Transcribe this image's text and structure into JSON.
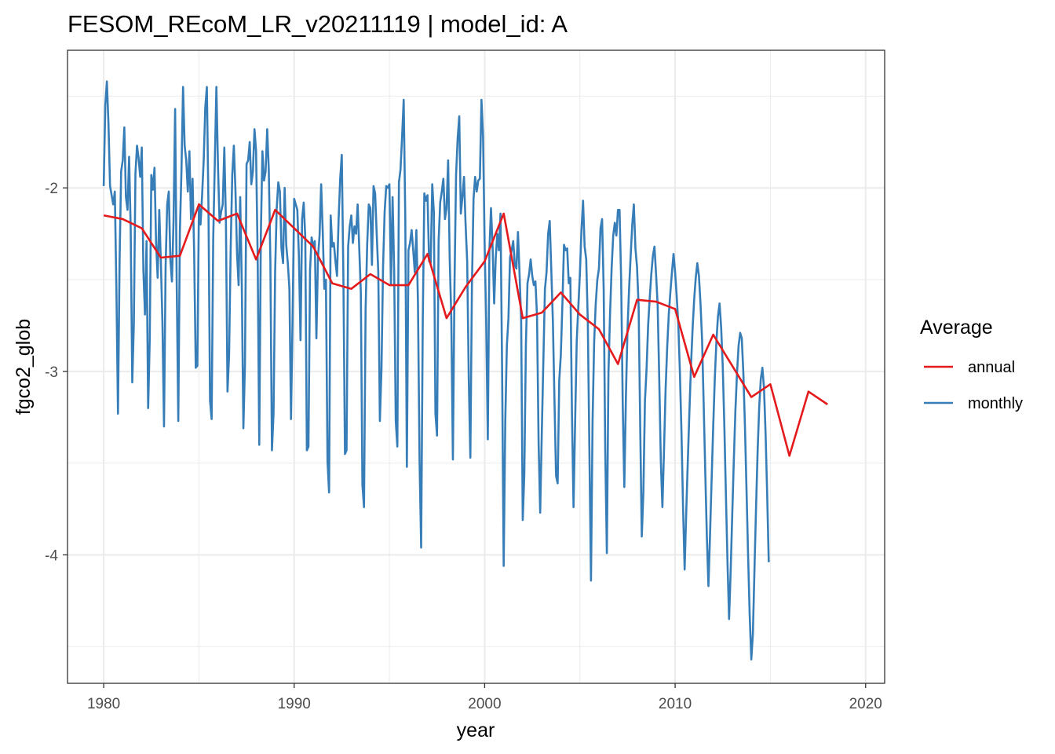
{
  "chart_data": {
    "type": "line",
    "title": "FESOM_REcoM_LR_v20211119 | model_id: A",
    "xlabel": "year",
    "ylabel": "fgco2_glob",
    "xlim": [
      1978.1,
      2021.0
    ],
    "ylim": [
      -4.7,
      -1.25
    ],
    "x_ticks": [
      1980,
      1990,
      2000,
      2010,
      2020
    ],
    "x_tick_labels": [
      "1980",
      "1990",
      "2000",
      "2010",
      "2020"
    ],
    "y_ticks": [
      -4,
      -3,
      -2
    ],
    "y_tick_labels": [
      "-4",
      "-3",
      "-2"
    ],
    "y_minor": [
      -4.5,
      -3.5,
      -2.5,
      -1.5
    ],
    "x_minor": [
      1985,
      1995,
      2005,
      2015
    ],
    "legend": {
      "title": "Average",
      "position": "right",
      "entries": [
        "annual",
        "monthly"
      ]
    },
    "series": [
      {
        "name": "annual",
        "color": "#e41a1c",
        "x": [
          1980,
          1981,
          1982,
          1983,
          1984,
          1985,
          1986,
          1987,
          1988,
          1989,
          1990,
          1991,
          1992,
          1993,
          1994,
          1995,
          1996,
          1997,
          1998,
          1999,
          2000,
          2001,
          2002,
          2003,
          2004,
          2005,
          2006,
          2007,
          2008,
          2009,
          2010,
          2011,
          2012,
          2013,
          2014,
          2015,
          2016,
          2017,
          2018
        ],
        "y": [
          -2.15,
          -2.17,
          -2.22,
          -2.38,
          -2.37,
          -2.09,
          -2.18,
          -2.14,
          -2.39,
          -2.12,
          -2.22,
          -2.32,
          -2.52,
          -2.55,
          -2.47,
          -2.53,
          -2.53,
          -2.36,
          -2.71,
          -2.54,
          -2.4,
          -2.14,
          -2.71,
          -2.68,
          -2.57,
          -2.69,
          -2.77,
          -2.96,
          -2.61,
          -2.62,
          -2.66,
          -3.03,
          -2.8,
          -2.97,
          -3.14,
          -3.07,
          -3.46,
          -3.11,
          -3.18
        ]
      },
      {
        "name": "monthly",
        "color": "#377eb8",
        "x_start": 1980.0,
        "x_step": 0.08333,
        "y": [
          -1.99,
          -1.55,
          -1.42,
          -1.65,
          -1.99,
          -2.04,
          -2.09,
          -2.02,
          -2.55,
          -3.23,
          -2.4,
          -1.91,
          -1.85,
          -1.67,
          -2.05,
          -2.12,
          -1.83,
          -2.22,
          -3.06,
          -2.74,
          -1.92,
          -1.77,
          -1.84,
          -1.94,
          -1.78,
          -2.45,
          -2.69,
          -2.29,
          -3.2,
          -2.83,
          -1.93,
          -2.01,
          -1.89,
          -2.3,
          -2.49,
          -2.12,
          -2.4,
          -2.73,
          -3.3,
          -2.43,
          -2.09,
          -2.02,
          -2.39,
          -2.51,
          -2.18,
          -1.57,
          -2.52,
          -3.27,
          -2.24,
          -1.9,
          -1.45,
          -1.77,
          -1.85,
          -2.02,
          -1.8,
          -2.17,
          -1.95,
          -2.36,
          -2.98,
          -2.97,
          -2.09,
          -2.2,
          -2.04,
          -1.85,
          -1.56,
          -1.45,
          -2.1,
          -3.16,
          -3.26,
          -2.28,
          -1.86,
          -1.45,
          -1.88,
          -2.19,
          -2.13,
          -2.09,
          -1.78,
          -2.18,
          -3.11,
          -2.91,
          -2.33,
          -1.93,
          -1.77,
          -2.01,
          -2.36,
          -2.53,
          -2.05,
          -2.52,
          -3.31,
          -2.96,
          -1.87,
          -1.85,
          -1.75,
          -1.98,
          -1.91,
          -1.68,
          -1.8,
          -2.38,
          -3.4,
          -2.26,
          -1.8,
          -1.96,
          -1.91,
          -1.68,
          -1.9,
          -2.39,
          -3.43,
          -3.23,
          -2.46,
          -2.11,
          -1.97,
          -2.02,
          -2.33,
          -2.41,
          -2.0,
          -2.31,
          -2.41,
          -2.55,
          -3.26,
          -2.72,
          -2.06,
          -2.09,
          -2.12,
          -2.38,
          -2.83,
          -2.17,
          -2.08,
          -2.27,
          -3.43,
          -3.41,
          -2.45,
          -2.27,
          -2.32,
          -2.29,
          -2.82,
          -2.38,
          -2.26,
          -1.98,
          -2.24,
          -2.55,
          -2.5,
          -3.49,
          -3.66,
          -2.15,
          -2.32,
          -2.3,
          -2.4,
          -2.48,
          -2.17,
          -1.95,
          -1.82,
          -2.48,
          -3.45,
          -3.43,
          -2.32,
          -2.21,
          -2.15,
          -2.3,
          -2.21,
          -2.25,
          -2.09,
          -2.33,
          -2.57,
          -3.62,
          -3.74,
          -2.66,
          -2.31,
          -2.09,
          -2.11,
          -2.42,
          -1.99,
          -2.03,
          -2.25,
          -2.46,
          -3.27,
          -2.99,
          -2.43,
          -2.13,
          -1.99,
          -2.0,
          -1.98,
          -2.53,
          -2.05,
          -2.45,
          -3.27,
          -3.41,
          -1.97,
          -1.9,
          -1.72,
          -1.52,
          -2.16,
          -3.52,
          -2.34,
          -2.3,
          -2.23,
          -2.34,
          -2.46,
          -2.23,
          -2.63,
          -3.49,
          -3.96,
          -2.74,
          -2.03,
          -2.07,
          -2.04,
          -2.4,
          -2.41,
          -1.98,
          -2.13,
          -3.23,
          -3.35,
          -2.29,
          -2.08,
          -2.02,
          -1.95,
          -2.17,
          -2.11,
          -1.85,
          -2.39,
          -2.71,
          -3.48,
          -2.53,
          -1.93,
          -1.73,
          -1.61,
          -2.14,
          -2.05,
          -1.94,
          -2.2,
          -2.4,
          -3.04,
          -3.47,
          -2.53,
          -2.06,
          -1.94,
          -2.02,
          -1.96,
          -1.95,
          -1.52,
          -1.72,
          -2.31,
          -2.74,
          -3.37,
          -2.34,
          -2.11,
          -2.32,
          -2.63,
          -2.38,
          -2.25,
          -2.34,
          -2.14,
          -2.99,
          -4.06,
          -3.27,
          -2.86,
          -2.71,
          -2.38,
          -2.34,
          -2.29,
          -2.42,
          -2.44,
          -2.24,
          -2.47,
          -2.72,
          -3.81,
          -3.56,
          -2.85,
          -2.52,
          -2.47,
          -2.39,
          -2.48,
          -2.53,
          -2.51,
          -2.7,
          -3.39,
          -3.77,
          -3.34,
          -2.94,
          -2.55,
          -2.46,
          -2.25,
          -2.18,
          -2.45,
          -2.73,
          -3.16,
          -3.57,
          -3.61,
          -3.05,
          -2.91,
          -2.63,
          -2.31,
          -2.34,
          -2.33,
          -2.52,
          -2.49,
          -3.22,
          -3.74,
          -3.28,
          -2.84,
          -2.65,
          -2.47,
          -2.23,
          -2.07,
          -2.32,
          -2.39,
          -2.73,
          -3.43,
          -4.14,
          -3.27,
          -2.84,
          -2.63,
          -2.5,
          -2.44,
          -2.22,
          -2.17,
          -2.55,
          -3.44,
          -3.99,
          -3.01,
          -2.69,
          -2.44,
          -2.26,
          -2.19,
          -2.26,
          -2.12,
          -2.12,
          -2.5,
          -3.18,
          -3.63,
          -3.14,
          -2.77,
          -2.55,
          -2.37,
          -2.2,
          -2.09,
          -2.33,
          -2.43,
          -2.64,
          -3.29,
          -3.9,
          -3.66,
          -3.16,
          -2.99,
          -2.75,
          -2.6,
          -2.47,
          -2.37,
          -2.32,
          -2.47,
          -2.64,
          -3.04,
          -3.49,
          -3.74,
          -3.43,
          -3.1,
          -2.87,
          -2.69,
          -2.57,
          -2.46,
          -2.36,
          -2.46,
          -2.59,
          -2.74,
          -3.0,
          -3.33,
          -3.74,
          -4.08,
          -3.77,
          -3.49,
          -3.22,
          -2.97,
          -2.77,
          -2.61,
          -2.49,
          -2.41,
          -2.48,
          -2.63,
          -2.83,
          -3.18,
          -3.55,
          -3.9,
          -4.17,
          -3.89,
          -3.59,
          -3.3,
          -3.04,
          -2.84,
          -2.7,
          -2.63,
          -2.76,
          -2.97,
          -3.29,
          -3.67,
          -4.04,
          -4.35,
          -4.09,
          -3.78,
          -3.48,
          -3.21,
          -3.01,
          -2.86,
          -2.79,
          -2.82,
          -3.01,
          -3.3,
          -3.65,
          -4.01,
          -4.33,
          -4.57,
          -4.43,
          -4.08,
          -3.74,
          -3.43,
          -3.19,
          -3.04,
          -2.98,
          -3.09,
          -3.34,
          -3.67,
          -4.04
        ]
      }
    ]
  }
}
